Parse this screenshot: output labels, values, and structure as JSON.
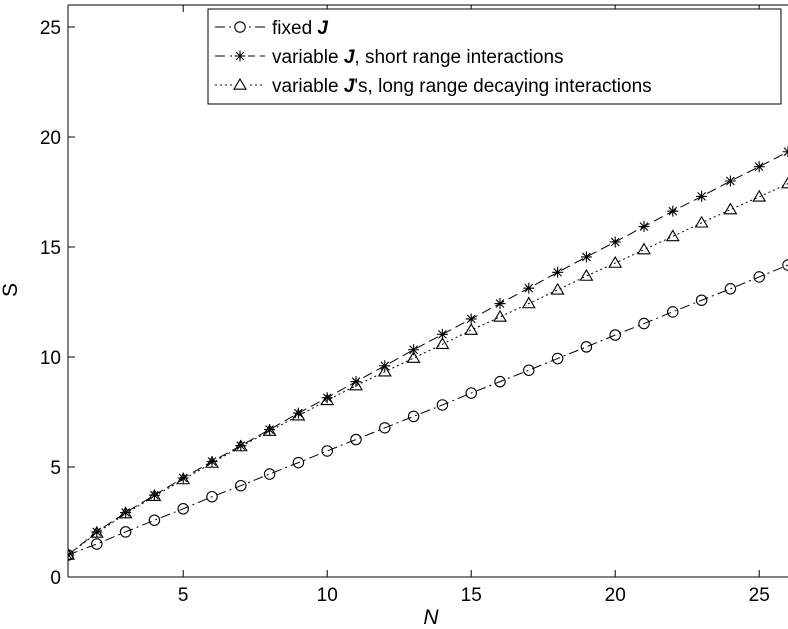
{
  "chart_data": {
    "type": "line",
    "title": "",
    "xlabel": "N",
    "ylabel": "S",
    "xlim": [
      1,
      26
    ],
    "ylim": [
      0,
      26
    ],
    "xticks": [
      5,
      10,
      15,
      20,
      25
    ],
    "yticks": [
      0,
      5,
      10,
      15,
      20,
      25
    ],
    "grid": false,
    "legend_position": "top-right",
    "x": [
      1,
      2,
      3,
      4,
      5,
      6,
      7,
      8,
      9,
      10,
      11,
      12,
      13,
      14,
      15,
      16,
      17,
      18,
      19,
      20,
      21,
      22,
      23,
      24,
      25,
      26
    ],
    "series": [
      {
        "legend_parts": [
          "fixed ",
          "J",
          ""
        ],
        "marker": "circle",
        "line_style": "dash-dot",
        "values": [
          1.0,
          1.5,
          2.05,
          2.58,
          3.1,
          3.65,
          4.15,
          4.68,
          5.2,
          5.73,
          6.25,
          6.78,
          7.3,
          7.82,
          8.36,
          8.88,
          9.4,
          9.93,
          10.46,
          11.0,
          11.52,
          12.05,
          12.58,
          13.1,
          13.64,
          14.18
        ]
      },
      {
        "legend_parts": [
          "variable  ",
          "J",
          ", short range interactions"
        ],
        "marker": "star",
        "line_style": "dashed",
        "values": [
          1.0,
          2.05,
          2.93,
          3.72,
          4.5,
          5.25,
          5.97,
          6.7,
          7.45,
          8.15,
          8.88,
          9.6,
          10.33,
          11.03,
          11.73,
          12.43,
          13.13,
          13.85,
          14.55,
          15.23,
          15.93,
          16.63,
          17.3,
          18.0,
          18.65,
          19.33
        ]
      },
      {
        "legend_parts": [
          "variable  ",
          "J",
          "'s, long range decaying interactions"
        ],
        "marker": "triangle",
        "line_style": "dotted",
        "values": [
          1.0,
          2.0,
          2.88,
          3.67,
          4.43,
          5.18,
          5.93,
          6.63,
          7.33,
          8.03,
          8.7,
          9.33,
          9.95,
          10.58,
          11.22,
          11.82,
          12.43,
          13.05,
          13.68,
          14.27,
          14.88,
          15.48,
          16.1,
          16.7,
          17.28,
          17.88
        ]
      }
    ]
  }
}
